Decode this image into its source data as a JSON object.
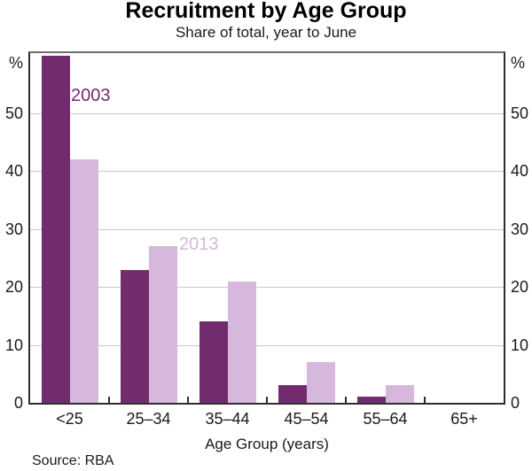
{
  "chart_data": {
    "type": "bar",
    "title": "Recruitment by Age Group",
    "subtitle": "Share of total, year to June",
    "xlabel": "Age Group (years)",
    "unit_left": "%",
    "unit_right": "%",
    "categories": [
      "<25",
      "25–34",
      "35–44",
      "45–54",
      "55–64",
      "65+"
    ],
    "series": [
      {
        "name": "2003",
        "color": "#722C6E",
        "values": [
          60,
          23,
          14,
          3,
          1,
          0
        ]
      },
      {
        "name": "2013",
        "color": "#D5B8DC",
        "values": [
          42,
          27,
          21,
          7,
          3,
          0
        ]
      }
    ],
    "yticks": [
      0,
      10,
      20,
      30,
      40,
      50
    ],
    "ylim": [
      0,
      61
    ],
    "grid": "horizontal",
    "legend": "inline-annotations",
    "source": "Source: RBA",
    "colors": {
      "gridline": "#cacaca",
      "axis": "#2e2e2e",
      "top_frame": "#707070",
      "text": "#1a1a1a"
    }
  }
}
